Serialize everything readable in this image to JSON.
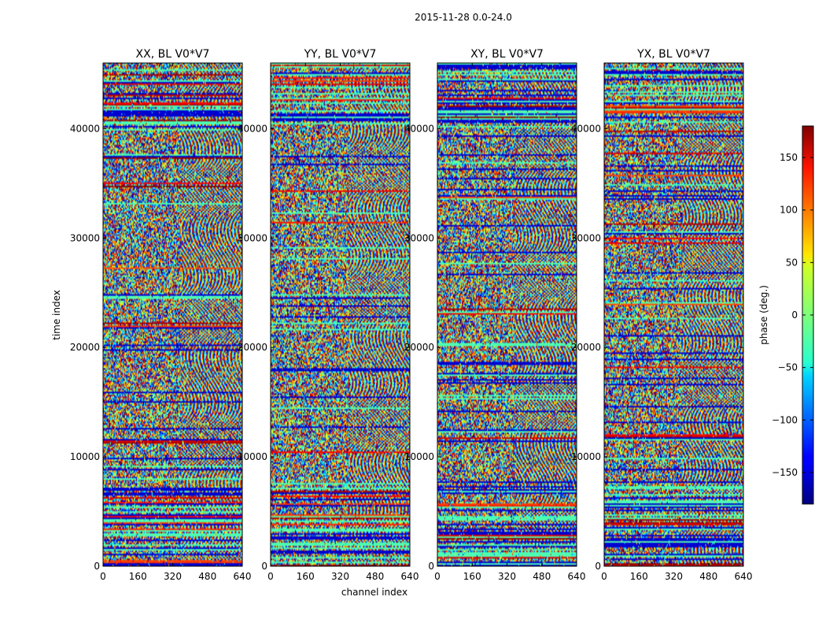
{
  "chart_data": {
    "type": "heatmap",
    "suptitle": "2015-11-28 0.0-24.0",
    "xlabel": "channel index",
    "ylabel": "time index",
    "xlim": [
      0,
      640
    ],
    "ylim": [
      0,
      46000
    ],
    "xticks": [
      0,
      160,
      320,
      480,
      640
    ],
    "yticks": [
      0,
      10000,
      20000,
      30000,
      40000
    ],
    "panels": [
      {
        "title": "XX, BL V0*V7"
      },
      {
        "title": "YY, BL V0*V7"
      },
      {
        "title": "XY, BL V0*V7"
      },
      {
        "title": "YX, BL V0*V7"
      }
    ],
    "colorbar": {
      "label": "phase (deg.)",
      "range": [
        -180,
        180
      ],
      "ticks": [
        150,
        100,
        50,
        0,
        -50,
        -100,
        -150
      ],
      "tick_labels": [
        "150",
        "100",
        "50",
        "0",
        "−50",
        "−100",
        "−150"
      ],
      "colormap": "jet"
    }
  }
}
